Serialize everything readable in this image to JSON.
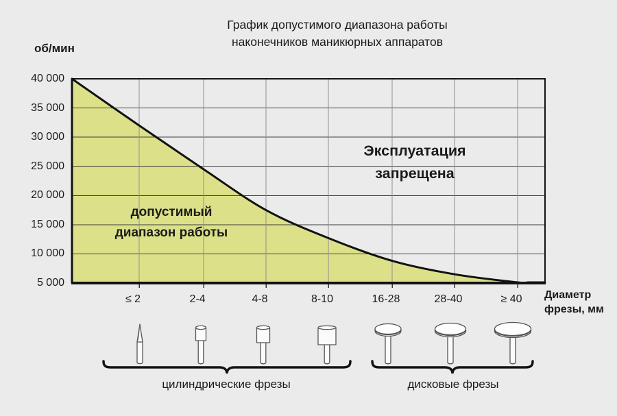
{
  "chart_data": {
    "type": "area",
    "title_lines": [
      "График допустимого диапазона работы",
      "наконечников маникюрных аппаратов"
    ],
    "ylabel": "об/мин",
    "xlabel_lines": [
      "Диаметр",
      "фрезы, мм"
    ],
    "ylim": [
      5000,
      40000
    ],
    "y_ticks": [
      {
        "value": 40000,
        "label": "40 000"
      },
      {
        "value": 35000,
        "label": "35 000"
      },
      {
        "value": 30000,
        "label": "30 000"
      },
      {
        "value": 25000,
        "label": "25 000"
      },
      {
        "value": 20000,
        "label": "20 000"
      },
      {
        "value": 15000,
        "label": "15 000"
      },
      {
        "value": 10000,
        "label": "10 000"
      },
      {
        "value": 5000,
        "label": "5 000"
      }
    ],
    "categories": [
      "≤ 2",
      "2-4",
      "4-8",
      "8-10",
      "16-28",
      "28-40",
      "≥ 40"
    ],
    "grid": true,
    "legend": "none",
    "max_rpm_curve": {
      "note": "maximum allowed rpm vs cutter diameter; tick 0 = left axis, 1..7 = category ticks, 8 = right edge",
      "points": [
        {
          "tick": 0,
          "rpm": 40000
        },
        {
          "tick": 1,
          "rpm": 32000
        },
        {
          "tick": 2,
          "rpm": 24500
        },
        {
          "tick": 3,
          "rpm": 17500
        },
        {
          "tick": 4,
          "rpm": 12700
        },
        {
          "tick": 5,
          "rpm": 8800
        },
        {
          "tick": 6,
          "rpm": 6500
        },
        {
          "tick": 7,
          "rpm": 5100
        },
        {
          "tick": 7.4,
          "rpm": 5000
        },
        {
          "tick": 8,
          "rpm": 5000
        }
      ]
    },
    "region_labels": {
      "allowed_lines": [
        "допустимый",
        "диапазон работы"
      ],
      "forbidden_lines": [
        "Эксплуатация",
        "запрещена"
      ]
    },
    "colors": {
      "allowed_fill": "#dce189",
      "background": "#ebebeb",
      "curve": "#121212",
      "h_grid": "#3c3c3c",
      "v_grid": "#8f8f8f"
    }
  },
  "bur_groups": [
    {
      "label": "цилиндрические фрезы",
      "icons": [
        "needle-bur-icon",
        "cylinder-bur-small-icon",
        "cylinder-bur-medium-icon",
        "cylinder-bur-large-icon"
      ]
    },
    {
      "label": "дисковые фрезы",
      "icons": [
        "disc-bur-small-icon",
        "disc-bur-medium-icon",
        "disc-bur-large-icon"
      ]
    }
  ]
}
